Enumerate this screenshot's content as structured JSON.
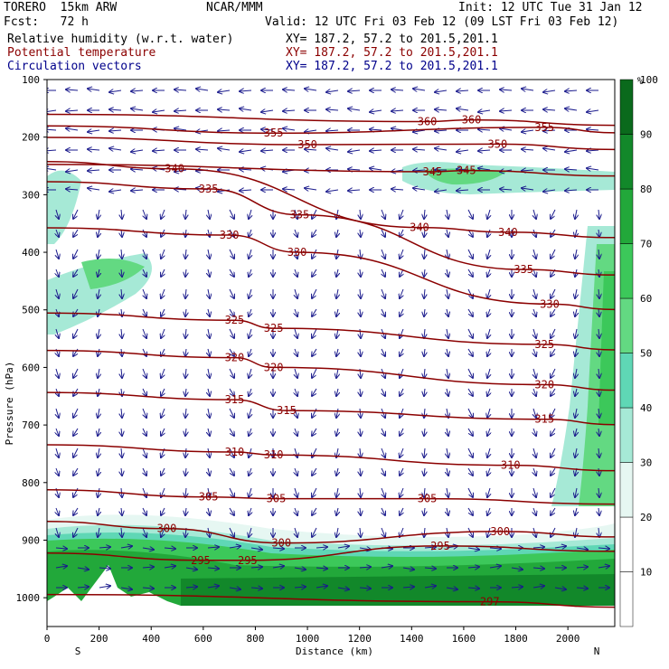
{
  "header": {
    "model": "TORERO  15km ARW",
    "org": "NCAR/MMM",
    "init": "Init: 12 UTC Tue 31 Jan 12",
    "fcst": "Fcst:   72 h",
    "valid": "Valid: 12 UTC Fri 03 Feb 12 (09 LST Fri 03 Feb 12)",
    "fields": [
      {
        "name": "Relative humidity (w.r.t. water)",
        "xy": "XY= 187.2, 57.2 to 201.5,201.1",
        "color": "#000000"
      },
      {
        "name": "Potential temperature",
        "xy": "XY= 187.2, 57.2 to 201.5,201.1",
        "color": "#8b0000"
      },
      {
        "name": "Circulation vectors",
        "xy": "XY= 187.2, 57.2 to 201.5,201.1",
        "color": "#00008b"
      }
    ]
  },
  "chart_data": {
    "type": "contour",
    "xlabel": "Distance (km)",
    "ylabel": "Pressure (hPa)",
    "x_ticks": [
      "0",
      "200",
      "400",
      "600",
      "800",
      "1000",
      "1200",
      "1400",
      "1600",
      "1800",
      "2000"
    ],
    "y_ticks": [
      "100",
      "200",
      "300",
      "400",
      "500",
      "600",
      "700",
      "800",
      "900",
      "1000"
    ],
    "xlim": [
      0,
      2180
    ],
    "ylim": [
      1050,
      100
    ],
    "x_endpoints": {
      "left": "S",
      "right": "N"
    },
    "colorbar": {
      "unit": "%",
      "labels": [
        "10",
        "20",
        "30",
        "40",
        "50",
        "60",
        "70",
        "80",
        "90",
        "100"
      ],
      "colors": [
        "#ffffff",
        "#ffffff",
        "#e6f7f2",
        "#a6e9d6",
        "#5fd7b5",
        "#63d982",
        "#3cc85a",
        "#22a83a",
        "#12882a",
        "#0a6a1c"
      ]
    },
    "theta_contours": [
      {
        "value": 295,
        "labels_at": [
          [
            590,
            935
          ],
          [
            770,
            935
          ],
          [
            1510,
            910
          ]
        ]
      },
      {
        "value": 297,
        "labels_at": [
          [
            1700,
            1007
          ]
        ]
      },
      {
        "value": 300,
        "labels_at": [
          [
            460,
            880
          ],
          [
            900,
            905
          ],
          [
            1740,
            885
          ]
        ]
      },
      {
        "value": 305,
        "labels_at": [
          [
            620,
            825
          ],
          [
            880,
            828
          ],
          [
            1460,
            828
          ]
        ]
      },
      {
        "value": 310,
        "labels_at": [
          [
            720,
            747
          ],
          [
            870,
            752
          ],
          [
            1780,
            770
          ]
        ]
      },
      {
        "value": 315,
        "labels_at": [
          [
            720,
            656
          ],
          [
            920,
            675
          ],
          [
            1910,
            690
          ]
        ]
      },
      {
        "value": 320,
        "labels_at": [
          [
            720,
            583
          ],
          [
            870,
            600
          ],
          [
            1910,
            630
          ]
        ]
      },
      {
        "value": 325,
        "labels_at": [
          [
            720,
            518
          ],
          [
            870,
            532
          ],
          [
            1910,
            560
          ]
        ]
      },
      {
        "value": 330,
        "labels_at": [
          [
            700,
            370
          ],
          [
            960,
            400
          ],
          [
            1930,
            490
          ]
        ]
      },
      {
        "value": 335,
        "labels_at": [
          [
            620,
            290
          ],
          [
            970,
            335
          ],
          [
            1830,
            430
          ]
        ]
      },
      {
        "value": 340,
        "labels_at": [
          [
            490,
            255
          ],
          [
            1430,
            357
          ],
          [
            1770,
            365
          ]
        ]
      },
      {
        "value": 345,
        "labels_at": [
          [
            1480,
            260
          ],
          [
            1610,
            258
          ]
        ]
      },
      {
        "value": 350,
        "labels_at": [
          [
            1000,
            213
          ],
          [
            1730,
            212
          ]
        ]
      },
      {
        "value": 355,
        "labels_at": [
          [
            870,
            193
          ],
          [
            1910,
            183
          ]
        ]
      },
      {
        "value": 360,
        "labels_at": [
          [
            1460,
            173
          ],
          [
            1630,
            170
          ]
        ]
      }
    ]
  }
}
